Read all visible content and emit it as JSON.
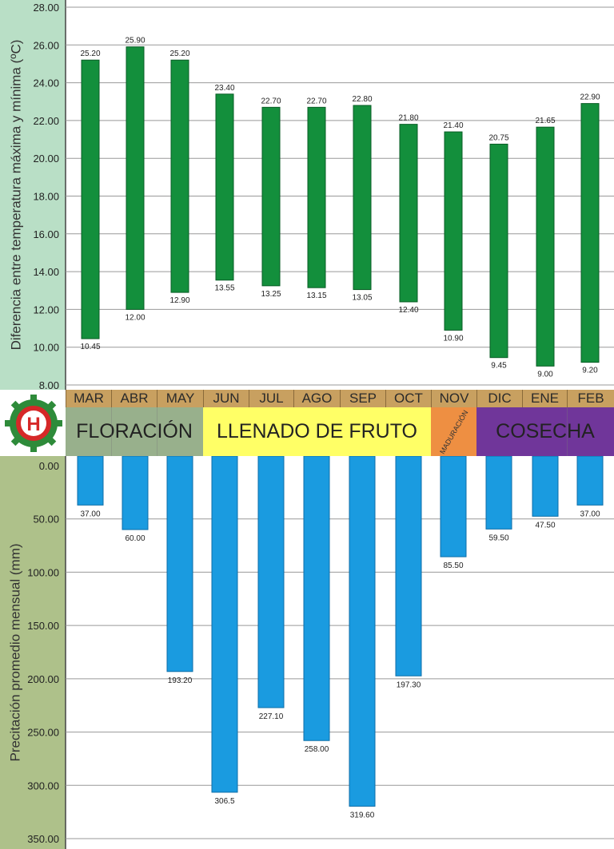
{
  "months": [
    "MAR",
    "ABR",
    "MAY",
    "JUN",
    "JUL",
    "AGO",
    "SEP",
    "OCT",
    "NOV",
    "DIC",
    "ENE",
    "FEB"
  ],
  "phases": [
    {
      "label": "FLORACIÓN",
      "color": "#98b08c",
      "text_color": "#222222"
    },
    {
      "label": "LLENADO DE FRUTO",
      "color": "#ffff66",
      "text_color": "#222222"
    },
    {
      "label": "MADURACIÓN",
      "color": "#ee8f42",
      "text_color": "#333333"
    },
    {
      "label": "COSECHA",
      "color": "#70369a",
      "text_color": "#222222"
    }
  ],
  "chart_data": [
    {
      "type": "bar",
      "ylabel": "Diferencia entre temperatura máxima y mínima (ºC)",
      "ylim": [
        8,
        28
      ],
      "yticks": [
        "8.00",
        "10.00",
        "12.00",
        "14.00",
        "16.00",
        "18.00",
        "20.00",
        "22.00",
        "24.00",
        "26.00",
        "28.00"
      ],
      "categories": [
        "MAR",
        "ABR",
        "MAY",
        "JUN",
        "JUL",
        "AGO",
        "SEP",
        "OCT",
        "NOV",
        "DIC",
        "ENE",
        "FEB"
      ],
      "max_values": [
        25.2,
        25.9,
        25.2,
        23.4,
        22.7,
        22.7,
        22.8,
        21.8,
        21.4,
        20.75,
        21.65,
        22.9
      ],
      "min_values": [
        10.45,
        12.0,
        12.9,
        13.55,
        13.25,
        13.15,
        13.05,
        12.4,
        10.9,
        9.45,
        9.0,
        9.2
      ],
      "max_labels": [
        "25.20",
        "25.90",
        "25.20",
        "23.40",
        "22.70",
        "22.70",
        "22.80",
        "21.80",
        "21.40",
        "20.75",
        "21.65",
        "22.90"
      ],
      "min_labels": [
        "10.45",
        "12.00",
        "12.90",
        "13.55",
        "13.25",
        "13.15",
        "13.05",
        "12.40",
        "10.90",
        "9.45",
        "9.00",
        "9.20"
      ],
      "color": "#138f3c",
      "grid": true
    },
    {
      "type": "bar",
      "ylabel": "Precitación promedio mensual (mm)",
      "ylim": [
        0,
        350
      ],
      "inverted": true,
      "yticks": [
        "0.00",
        "50.00",
        "100.00",
        "150.00",
        "200.00",
        "250.00",
        "300.00",
        "350.00"
      ],
      "categories": [
        "MAR",
        "ABR",
        "MAY",
        "JUN",
        "JUL",
        "AGO",
        "SEP",
        "OCT",
        "NOV",
        "DIC",
        "ENE",
        "FEB"
      ],
      "values": [
        37.0,
        60.0,
        193.2,
        306.5,
        227.1,
        258.0,
        319.6,
        197.3,
        85.5,
        59.5,
        47.5,
        37.0
      ],
      "labels": [
        "37.00",
        "60.00",
        "193.20",
        "306.5",
        "227.10",
        "258.00",
        "319.60",
        "197.30",
        "85.50",
        "59.50",
        "47.50",
        "37.00"
      ],
      "color": "#1a9be0",
      "grid": true
    }
  ]
}
